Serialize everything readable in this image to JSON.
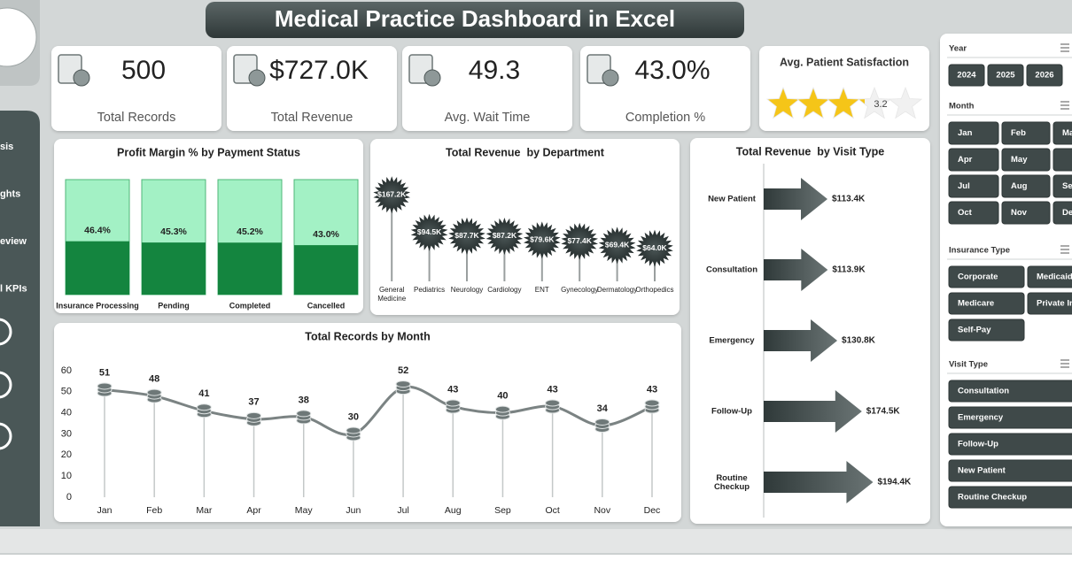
{
  "header": {
    "title": "Medical Practice Dashboard in Excel"
  },
  "nav": [
    "sis",
    "ghts",
    "eview",
    "l KPIs"
  ],
  "kpis": [
    {
      "value": "500",
      "label": "Total Records"
    },
    {
      "value": "$727.0K",
      "label": "Total Revenue"
    },
    {
      "value": "49.3",
      "label": "Avg. Wait Time"
    },
    {
      "value": "43.0%",
      "label": "Completion %"
    }
  ],
  "satisfaction": {
    "title": "Avg. Patient Satisfaction",
    "rating": 3.2,
    "color": "#f5c518"
  },
  "chart_data": [
    {
      "type": "bar",
      "title": "Profit Margin % by Payment Status",
      "categories": [
        "Insurance Processing",
        "Pending",
        "Completed",
        "Cancelled"
      ],
      "values": [
        46.4,
        45.3,
        45.2,
        43.0
      ],
      "value_labels": [
        "46.4%",
        "45.3%",
        "45.2%",
        "43.0%"
      ],
      "ylim": [
        0,
        100
      ],
      "color": "#14853f",
      "track_color": "#a3f1c5"
    },
    {
      "type": "lollipop",
      "title": "Total Revenue  by Department",
      "categories": [
        "General Medicine",
        "Pediatrics",
        "Neurology",
        "Cardiology",
        "ENT",
        "Gynecology",
        "Dermatology",
        "Orthopedics"
      ],
      "values": [
        167.2,
        94.5,
        87.7,
        87.2,
        79.6,
        77.4,
        69.4,
        64.0
      ],
      "value_labels": [
        "$167.2K",
        "$94.5K",
        "$87.7K",
        "$87.2K",
        "$79.6K",
        "$77.4K",
        "$69.4K",
        "$64.0K"
      ],
      "ylim": [
        0,
        200
      ],
      "color": "#3a4444"
    },
    {
      "type": "arrow",
      "title": "Total Revenue  by Visit Type",
      "categories": [
        "New Patient",
        "Consultation",
        "Emergency",
        "Follow-Up",
        "Routine Checkup"
      ],
      "values": [
        113.4,
        113.9,
        130.8,
        174.5,
        194.4
      ],
      "value_labels": [
        "$113.4K",
        "$113.9K",
        "$130.8K",
        "$174.5K",
        "$194.4K"
      ],
      "xlim": [
        0,
        200
      ],
      "color": "#3e4848"
    },
    {
      "type": "line",
      "title": "Total Records by Month",
      "categories": [
        "Jan",
        "Feb",
        "Mar",
        "Apr",
        "May",
        "Jun",
        "Jul",
        "Aug",
        "Sep",
        "Oct",
        "Nov",
        "Dec"
      ],
      "values": [
        51,
        48,
        41,
        37,
        38,
        30,
        52,
        43,
        40,
        43,
        34,
        43
      ],
      "ylim": [
        0,
        60
      ],
      "yticks": [
        0,
        10,
        20,
        30,
        40,
        50,
        60
      ],
      "grid": false,
      "color": "#7b8383"
    }
  ],
  "slicers": [
    {
      "title": "Year",
      "items": [
        "2024",
        "2025",
        "2026"
      ]
    },
    {
      "title": "Month",
      "items": [
        "Jan",
        "Feb",
        "Ma",
        "Apr",
        "May",
        null,
        "Jul",
        "Aug",
        "Se",
        "Oct",
        "Nov",
        "De"
      ]
    },
    {
      "title": "Insurance Type",
      "items": [
        "Corporate",
        "Medicaid",
        "Medicare",
        "Private In",
        "Self-Pay"
      ]
    },
    {
      "title": "Visit Type",
      "items": [
        "Consultation",
        "Emergency",
        "Follow-Up",
        "New Patient",
        "Routine Checkup"
      ]
    }
  ]
}
